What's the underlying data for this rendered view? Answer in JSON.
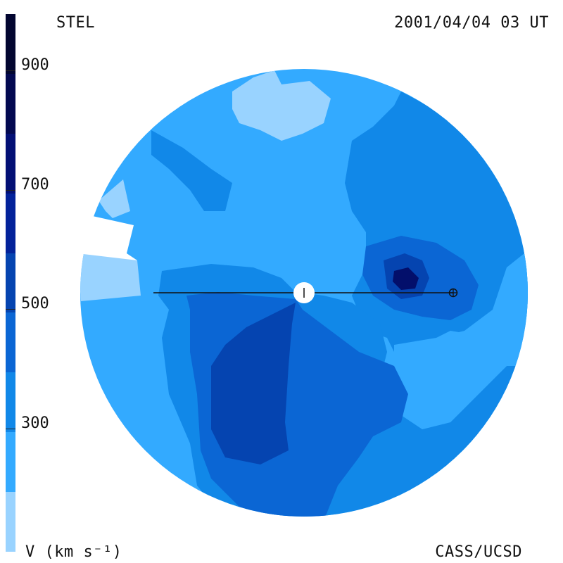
{
  "header": {
    "source": "STEL",
    "datetime": "2001/04/04 03 UT"
  },
  "footer": {
    "unit": "V (km s⁻¹)",
    "credit": "CASS/UCSD"
  },
  "colorbar": {
    "ticks": [
      {
        "value": 900,
        "label": "900"
      },
      {
        "value": 700,
        "label": "700"
      },
      {
        "value": 500,
        "label": "500"
      },
      {
        "value": 300,
        "label": "300"
      }
    ],
    "levels": [
      {
        "min": 100,
        "max": 200,
        "color": "#99d3ff"
      },
      {
        "min": 200,
        "max": 300,
        "color": "#33aaff"
      },
      {
        "min": 300,
        "max": 400,
        "color": "#1188e8"
      },
      {
        "min": 400,
        "max": 500,
        "color": "#0b66d4"
      },
      {
        "min": 500,
        "max": 600,
        "color": "#0544b0"
      },
      {
        "min": 600,
        "max": 700,
        "color": "#03229a"
      },
      {
        "min": 700,
        "max": 800,
        "color": "#031075"
      },
      {
        "min": 800,
        "max": 900,
        "color": "#030950"
      },
      {
        "min": 900,
        "max": 1000,
        "color": "#020630"
      }
    ]
  },
  "markers": {
    "sun": "sun-icon",
    "earth": "earth-icon"
  }
}
